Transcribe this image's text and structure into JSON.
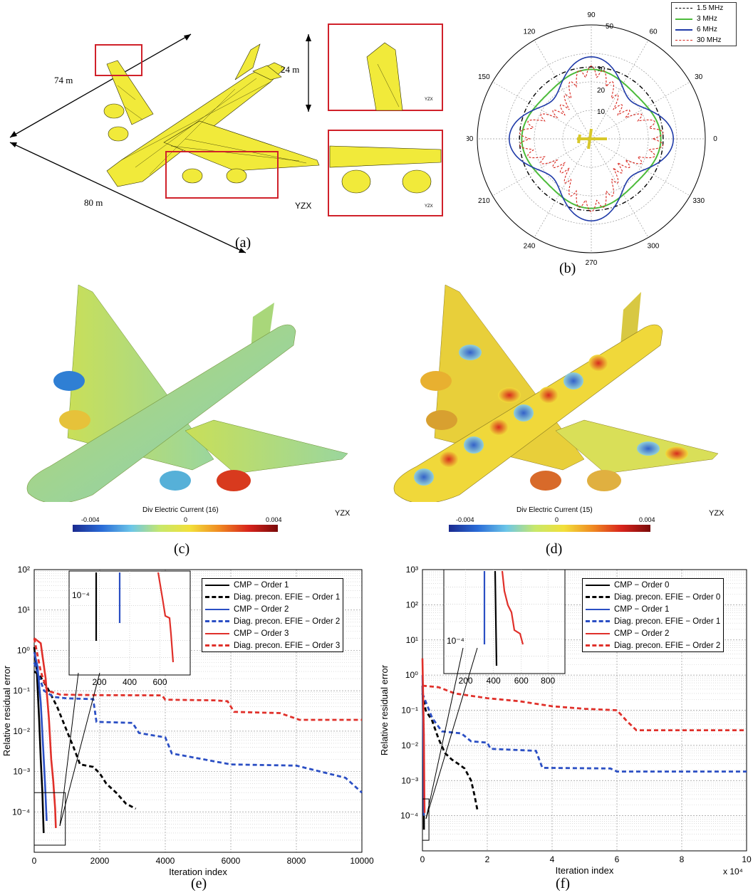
{
  "panel_a": {
    "caption": "(a)",
    "dims": {
      "length": "74 m",
      "span": "80 m",
      "height": "24 m"
    },
    "axes_label": "YZX",
    "inset_axes_label": "YZX"
  },
  "panel_b": {
    "caption": "(b)",
    "legend": [
      {
        "label": "1.5 MHz",
        "color": "#000000",
        "style": "dash-dot"
      },
      {
        "label": "3 MHz",
        "color": "#4cbb3a",
        "style": "solid"
      },
      {
        "label": "6 MHz",
        "color": "#1f3aa8",
        "style": "solid"
      },
      {
        "label": "30 MHz",
        "color": "#d7261e",
        "style": "dashed"
      }
    ],
    "angle_labels": [
      "90",
      "120",
      "150",
      "180",
      "210",
      "240",
      "270",
      "300",
      "330",
      "0",
      "30",
      "60"
    ],
    "radial_labels": [
      "10",
      "20",
      "30",
      "50"
    ]
  },
  "panel_c": {
    "caption": "(c)",
    "colorbar_title": "Div Electric Current (16)",
    "colorbar_min": "-0.004",
    "colorbar_mid": "0",
    "colorbar_max": "0.004",
    "axes_label": "YZX"
  },
  "panel_d": {
    "caption": "(d)",
    "colorbar_title": "Div Electric Current (15)",
    "colorbar_min": "-0.004",
    "colorbar_mid": "0",
    "colorbar_max": "0.004",
    "axes_label": "YZX"
  },
  "panel_e": {
    "caption": "(e)",
    "legend": [
      {
        "label": "CMP − Order 1",
        "color": "#000000",
        "style": "solid"
      },
      {
        "label": "Diag. precon. EFIE − Order 1",
        "color": "#000000",
        "style": "dashed"
      },
      {
        "label": "CMP − Order 2",
        "color": "#2b4fc4",
        "style": "solid"
      },
      {
        "label": "Diag. precon. EFIE − Order 2",
        "color": "#2b4fc4",
        "style": "dashed"
      },
      {
        "label": "CMP − Order 3",
        "color": "#e0302a",
        "style": "solid"
      },
      {
        "label": "Diag. precon. EFIE − Order 3",
        "color": "#e0302a",
        "style": "dashed"
      }
    ],
    "inset_ylabel": "10⁻⁴",
    "inset_xticks": [
      "200",
      "400",
      "600"
    ]
  },
  "panel_f": {
    "caption": "(f)",
    "legend": [
      {
        "label": "CMP − Order 0",
        "color": "#000000",
        "style": "solid"
      },
      {
        "label": "Diag. precon. EFIE − Order 0",
        "color": "#000000",
        "style": "dashed"
      },
      {
        "label": "CMP − Order 1",
        "color": "#2b4fc4",
        "style": "solid"
      },
      {
        "label": "Diag. precon. EFIE − Order 1",
        "color": "#2b4fc4",
        "style": "dashed"
      },
      {
        "label": "CMP − Order 2",
        "color": "#e0302a",
        "style": "solid"
      },
      {
        "label": "Diag. precon. EFIE − Order 2",
        "color": "#e0302a",
        "style": "dashed"
      }
    ],
    "inset_ylabel": "10⁻⁴",
    "inset_xticks": [
      "200",
      "400",
      "600",
      "800"
    ],
    "x_multiplier": "x 10⁴"
  },
  "chart_data": [
    {
      "id": "e",
      "type": "line",
      "xlabel": "Iteration index",
      "ylabel": "Relative residual error",
      "xlim": [
        0,
        10000
      ],
      "ylim_log10": [
        -5,
        2
      ],
      "xticks": [
        "0",
        "2000",
        "4000",
        "6000",
        "8000",
        "10000"
      ],
      "yticks": [
        "10⁻⁴",
        "10⁻³",
        "10⁻²",
        "10⁻¹",
        "10⁰",
        "10¹",
        "10²"
      ],
      "grid": true,
      "legend_position": "top-right",
      "series": [
        {
          "name": "CMP − Order 1",
          "color": "#000000",
          "dash": false,
          "points": [
            [
              0,
              1.2
            ],
            [
              80,
              0.3
            ],
            [
              150,
              0.02
            ],
            [
              200,
              0.002
            ],
            [
              250,
              0.0003
            ],
            [
              290,
              3e-05
            ]
          ]
        },
        {
          "name": "Diag. precon. EFIE − Order 1",
          "color": "#000000",
          "dash": true,
          "points": [
            [
              0,
              0.3
            ],
            [
              150,
              0.25
            ],
            [
              400,
              0.12
            ],
            [
              700,
              0.04
            ],
            [
              1000,
              0.01
            ],
            [
              1200,
              0.004
            ],
            [
              1400,
              0.0015
            ],
            [
              1800,
              0.0013
            ],
            [
              2000,
              0.0009
            ],
            [
              2200,
              0.0005
            ],
            [
              2500,
              0.0003
            ],
            [
              2800,
              0.00016
            ],
            [
              3100,
              0.00012
            ]
          ]
        },
        {
          "name": "CMP − Order 2",
          "color": "#2b4fc4",
          "dash": false,
          "points": [
            [
              0,
              0.9
            ],
            [
              100,
              0.4
            ],
            [
              200,
              0.05
            ],
            [
              280,
              0.003
            ],
            [
              330,
              0.0005
            ],
            [
              380,
              6e-05
            ]
          ]
        },
        {
          "name": "Diag. precon. EFIE − Order 2",
          "color": "#2b4fc4",
          "dash": true,
          "points": [
            [
              0,
              0.5
            ],
            [
              300,
              0.1
            ],
            [
              600,
              0.07
            ],
            [
              1000,
              0.065
            ],
            [
              1800,
              0.062
            ],
            [
              1900,
              0.017
            ],
            [
              3000,
              0.016
            ],
            [
              3200,
              0.009
            ],
            [
              4000,
              0.007
            ],
            [
              4200,
              0.0028
            ],
            [
              6000,
              0.0015
            ],
            [
              8000,
              0.0014
            ],
            [
              9500,
              0.0007
            ],
            [
              10000,
              0.0003
            ]
          ]
        },
        {
          "name": "CMP − Order 3",
          "color": "#e0302a",
          "dash": false,
          "points": [
            [
              0,
              2
            ],
            [
              200,
              1.5
            ],
            [
              350,
              0.2
            ],
            [
              450,
              0.02
            ],
            [
              520,
              0.002
            ],
            [
              580,
              0.0006
            ],
            [
              640,
              0.00012
            ],
            [
              660,
              4e-05
            ]
          ]
        },
        {
          "name": "Diag. precon. EFIE − Order 3",
          "color": "#e0302a",
          "dash": true,
          "points": [
            [
              0,
              2
            ],
            [
              200,
              0.3
            ],
            [
              400,
              0.1
            ],
            [
              800,
              0.08
            ],
            [
              2000,
              0.078
            ],
            [
              3900,
              0.077
            ],
            [
              4000,
              0.06
            ],
            [
              5500,
              0.058
            ],
            [
              5900,
              0.055
            ],
            [
              6100,
              0.03
            ],
            [
              7500,
              0.028
            ],
            [
              8100,
              0.019
            ],
            [
              10000,
              0.019
            ]
          ]
        }
      ]
    },
    {
      "id": "f",
      "type": "line",
      "xlabel": "Iteration index",
      "ylabel": "Relative residual error",
      "xlim": [
        0,
        10
      ],
      "x_multiplier": "x 10⁴",
      "ylim_log10": [
        -5,
        3
      ],
      "xticks": [
        "0",
        "2",
        "4",
        "6",
        "8",
        "10"
      ],
      "yticks": [
        "10⁻⁴",
        "10⁻³",
        "10⁻²",
        "10⁻¹",
        "10⁰",
        "10¹",
        "10²",
        "10³"
      ],
      "grid": true,
      "legend_position": "top-right",
      "series": [
        {
          "name": "CMP − Order 0",
          "color": "#000000",
          "dash": false,
          "points": [
            [
              0,
              0.5
            ],
            [
              0.02,
              0.05
            ],
            [
              0.04,
              0.002
            ],
            [
              0.046,
              4e-05
            ]
          ]
        },
        {
          "name": "Diag. precon. EFIE − Order 0",
          "color": "#000000",
          "dash": true,
          "points": [
            [
              0,
              0.3
            ],
            [
              0.1,
              0.1
            ],
            [
              0.3,
              0.05
            ],
            [
              0.5,
              0.015
            ],
            [
              0.7,
              0.006
            ],
            [
              0.9,
              0.004
            ],
            [
              1.1,
              0.003
            ],
            [
              1.3,
              0.0022
            ],
            [
              1.5,
              0.001
            ],
            [
              1.6,
              0.0004
            ],
            [
              1.7,
              0.00014
            ]
          ]
        },
        {
          "name": "CMP − Order 1",
          "color": "#2b4fc4",
          "dash": false,
          "points": [
            [
              0,
              1
            ],
            [
              0.02,
              0.1
            ],
            [
              0.035,
              0.002
            ],
            [
              0.039,
              0.0001
            ]
          ]
        },
        {
          "name": "Diag. precon. EFIE − Order 1",
          "color": "#2b4fc4",
          "dash": true,
          "points": [
            [
              0,
              0.3
            ],
            [
              0.3,
              0.06
            ],
            [
              0.6,
              0.025
            ],
            [
              1.2,
              0.022
            ],
            [
              1.5,
              0.013
            ],
            [
              2.0,
              0.012
            ],
            [
              2.1,
              0.008
            ],
            [
              3.5,
              0.007
            ],
            [
              3.7,
              0.0023
            ],
            [
              5.8,
              0.0022
            ],
            [
              6.0,
              0.0018
            ],
            [
              10,
              0.0018
            ]
          ]
        },
        {
          "name": "CMP − Order 2",
          "color": "#e0302a",
          "dash": false,
          "points": [
            [
              0,
              3
            ],
            [
              0.02,
              0.3
            ],
            [
              0.045,
              0.02
            ],
            [
              0.06,
              0.0003
            ],
            [
              0.066,
              0.00012
            ]
          ]
        },
        {
          "name": "Diag. precon. EFIE − Order 2",
          "color": "#e0302a",
          "dash": true,
          "points": [
            [
              0,
              0.5
            ],
            [
              0.5,
              0.45
            ],
            [
              1.0,
              0.3
            ],
            [
              2.0,
              0.22
            ],
            [
              3.0,
              0.18
            ],
            [
              4.0,
              0.13
            ],
            [
              5.0,
              0.11
            ],
            [
              6.0,
              0.1
            ],
            [
              6.3,
              0.05
            ],
            [
              6.6,
              0.027
            ],
            [
              10,
              0.027
            ]
          ]
        }
      ]
    }
  ]
}
